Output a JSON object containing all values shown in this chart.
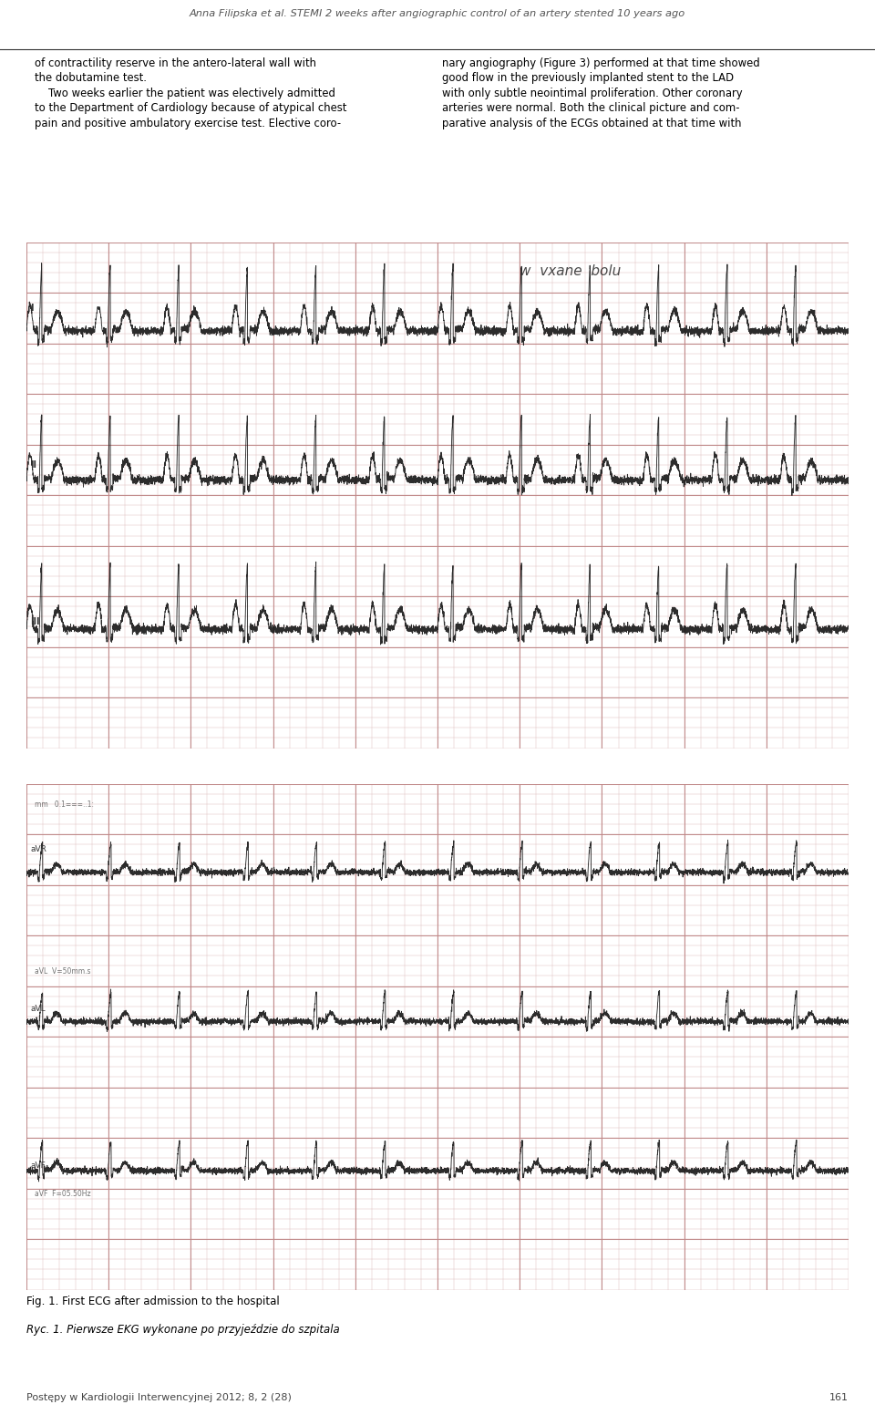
{
  "header_text": "Anna Filipska et al. STEMI 2 weeks after angiographic control of an artery stented 10 years ago",
  "col1_text": "of contractility reserve in the antero-lateral wall with\nthe dobutamine test.\n    Two weeks earlier the patient was electively admitted\nto the Department of Cardiology because of atypical chest\npain and positive ambulatory exercise test. Elective coro-",
  "col2_text": "nary angiography (Figure 3) performed at that time showed\ngood flow in the previously implanted stent to the LAD\nwith only subtle neointimal proliferation. Other coronary\narteries were normal. Both the clinical picture and com-\nparative analysis of the ECGs obtained at that time with",
  "fig_caption_en": "Fig. 1. First ECG after admission to the hospital",
  "fig_caption_pl": "Ryc. 1. Pierwsze EKG wykonane po przyjeździe do szpitala",
  "footer_text": "Postępy w Kardiologii Interwencyjnej 2012; 8, 2 (28)",
  "footer_page": "161",
  "bg_color": "#ffffff",
  "text_color": "#000000",
  "grid_color_light": "#dbbaba",
  "grid_color_dark": "#c08888",
  "ecg_color": "#1a1a1a",
  "ecg_bg": "#f2e2d8",
  "handwriting_text": "w  vxane  bolu"
}
